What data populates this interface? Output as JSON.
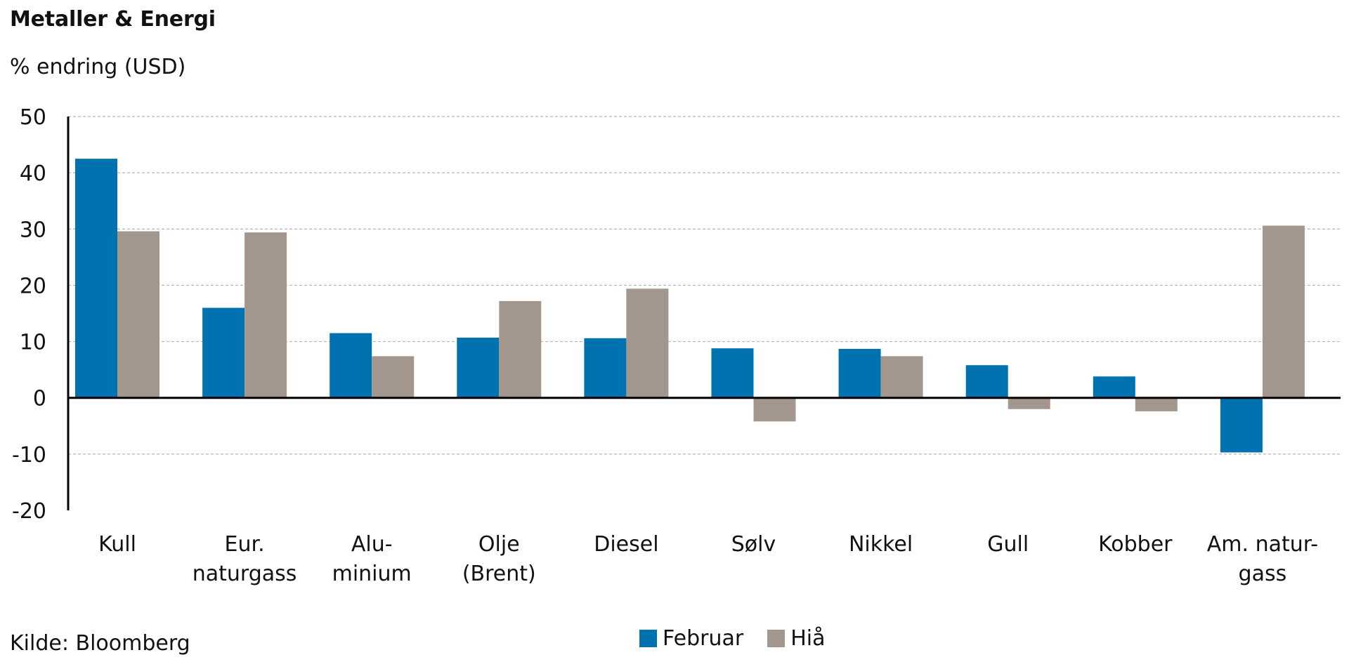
{
  "chart_data": {
    "type": "bar",
    "title": "Metaller & Energi",
    "subtitle": "% endring (USD)",
    "source": "Kilde: Bloomberg",
    "categories": [
      "Kull",
      "Eur. naturgass",
      "Alu- minium",
      "Olje (Brent)",
      "Diesel",
      "Sølv",
      "Nikkel",
      "Gull",
      "Kobber",
      "Am. natur- gass"
    ],
    "category_lines": [
      [
        "Kull"
      ],
      [
        "Eur.",
        "naturgass"
      ],
      [
        "Alu-",
        "minium"
      ],
      [
        "Olje",
        "(Brent)"
      ],
      [
        "Diesel"
      ],
      [
        "Sølv"
      ],
      [
        "Nikkel"
      ],
      [
        "Gull"
      ],
      [
        "Kobber"
      ],
      [
        "Am. natur-",
        "gass"
      ]
    ],
    "series": [
      {
        "name": "Februar",
        "color": "#0072b0",
        "values": [
          42.5,
          16.0,
          11.5,
          10.7,
          10.6,
          8.8,
          8.7,
          5.8,
          3.8,
          -9.7
        ]
      },
      {
        "name": "Hiå",
        "color": "#a3978d",
        "values": [
          29.6,
          29.4,
          7.4,
          17.2,
          19.4,
          -4.2,
          7.4,
          -2.0,
          -2.4,
          30.6
        ]
      }
    ],
    "ylim": [
      -20,
      50
    ],
    "yticks": [
      -20,
      -10,
      0,
      10,
      20,
      30,
      40,
      50
    ],
    "grid": true,
    "legend_position": "bottom-center"
  }
}
